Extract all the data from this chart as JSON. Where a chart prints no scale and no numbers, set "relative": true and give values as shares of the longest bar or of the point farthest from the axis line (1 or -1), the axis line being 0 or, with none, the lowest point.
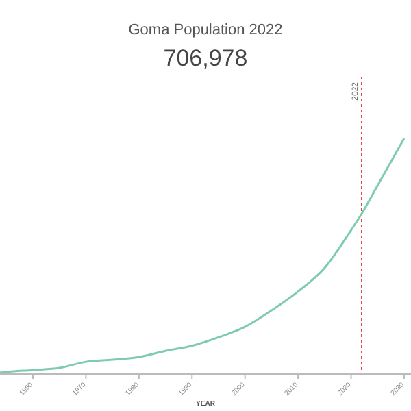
{
  "chart_data": {
    "type": "line",
    "title": "Goma Population 2022",
    "subtitle": "706,978",
    "xlabel": "YEAR",
    "relative": true,
    "x": [
      1953.8,
      1955,
      1960,
      1965,
      1970,
      1975,
      1980,
      1985,
      1990,
      1995,
      2000,
      2005,
      2010,
      2015,
      2020,
      2022,
      2025,
      2030
    ],
    "series": [
      {
        "color": "#7fcbb2",
        "values": [
          0.006,
          0.009,
          0.017,
          0.026,
          0.052,
          0.061,
          0.072,
          0.098,
          0.12,
          0.156,
          0.2,
          0.27,
          0.35,
          0.45,
          0.61,
          0.68,
          0.8,
          1.0
        ]
      }
    ],
    "xlim": [
      1953.8,
      2031.3
    ],
    "xticks": [
      1960,
      1970,
      1980,
      1990,
      2000,
      2010,
      2020,
      2030
    ],
    "ref_lines": [
      {
        "axis": "x",
        "value": 2022,
        "label": "2022",
        "color": "#e8463f",
        "line_style": "dotted"
      }
    ]
  }
}
